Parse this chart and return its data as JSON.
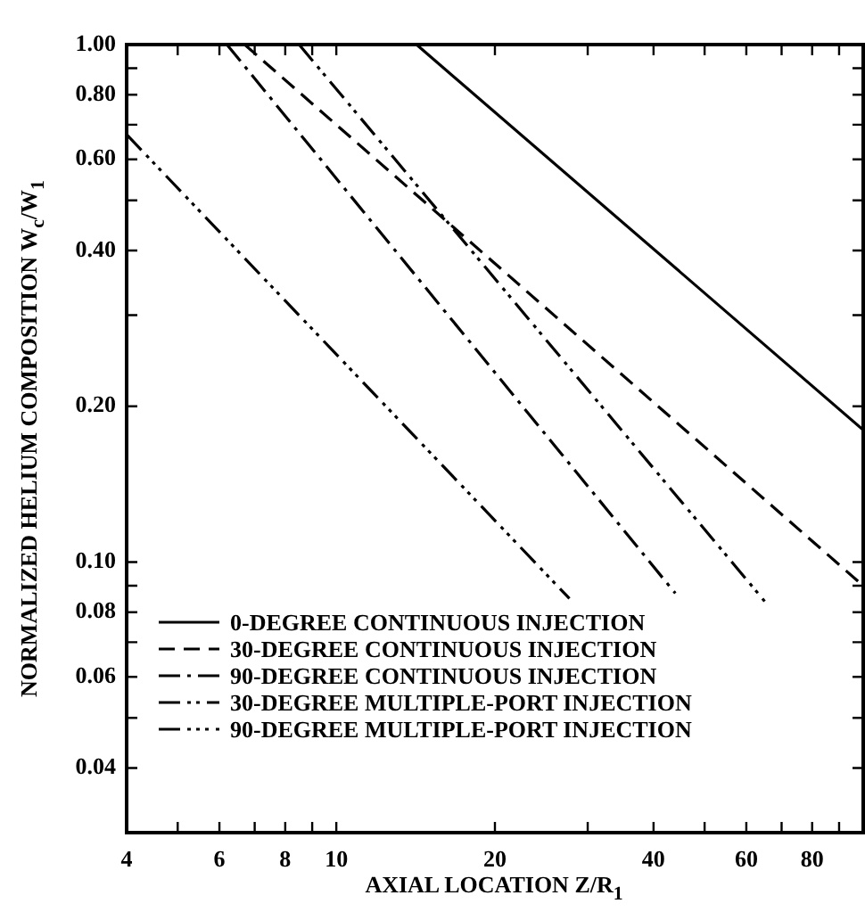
{
  "chart_data": {
    "type": "line",
    "xlabel": "AXIAL LOCATION Z/R$_{1}$",
    "ylabel": "NORMALIZED HELIUM COMPOSITION W$_{c}$/W$_{1}$",
    "log": "xy",
    "grid": false,
    "legend": "bottom",
    "marker": "none",
    "xlim": [
      4,
      100
    ],
    "ylim": [
      0.03,
      1
    ],
    "xticks": [
      4,
      {
        "value": 5,
        "label": null
      },
      6,
      {
        "value": 7,
        "label": null
      },
      8,
      {
        "value": 9,
        "label": null
      },
      10,
      20,
      {
        "value": 30,
        "label": null
      },
      40,
      {
        "value": 50,
        "label": null
      },
      60,
      {
        "value": 70,
        "label": null
      },
      80,
      {
        "value": 90,
        "label": null
      }
    ],
    "yticks": [
      0.04,
      {
        "value": 0.05,
        "label": null
      },
      0.06,
      {
        "value": 0.07,
        "label": null
      },
      0.08,
      {
        "value": 0.09,
        "label": null
      },
      {
        "value": 0.1,
        "label": "0.10"
      },
      {
        "value": 0.2,
        "label": "0.20"
      },
      {
        "value": 0.3,
        "label": null
      },
      {
        "value": 0.4,
        "label": "0.40"
      },
      {
        "value": 0.5,
        "label": null
      },
      {
        "value": 0.6,
        "label": "0.60"
      },
      {
        "value": 0.7,
        "label": null
      },
      {
        "value": 0.8,
        "label": "0.80"
      },
      {
        "value": 0.9,
        "label": null
      },
      {
        "value": 1,
        "label": "1.00"
      }
    ],
    "series": [
      {
        "name": "0-DEGREE CONTINUOUS INJECTION",
        "color": "#000000",
        "line_style": "solid",
        "x": [
          14.2,
          100
        ],
        "values": [
          1.0,
          0.18
        ]
      },
      {
        "name": "30-DEGREE CONTINUOUS INJECTION",
        "color": "#000000",
        "line_style": "dashed",
        "x": [
          6.7,
          100
        ],
        "values": [
          1.0,
          0.09
        ]
      },
      {
        "name": "90-DEGREE CONTINUOUS INJECTION",
        "color": "#000000",
        "line_style": "dashdot",
        "x": [
          6.2,
          44
        ],
        "values": [
          1.0,
          0.087
        ]
      },
      {
        "name": "30-DEGREE MULTIPLE-PORT INJECTION",
        "color": "#000000",
        "line_style": "dashdotdot",
        "x": [
          8.5,
          65
        ],
        "values": [
          1.0,
          0.084
        ]
      },
      {
        "name": "90-DEGREE MULTIPLE-PORT INJECTION",
        "color": "#000000",
        "line_style": "dashdotdotdot",
        "x": [
          4,
          27.7
        ],
        "values": [
          0.67,
          0.085
        ]
      }
    ]
  }
}
